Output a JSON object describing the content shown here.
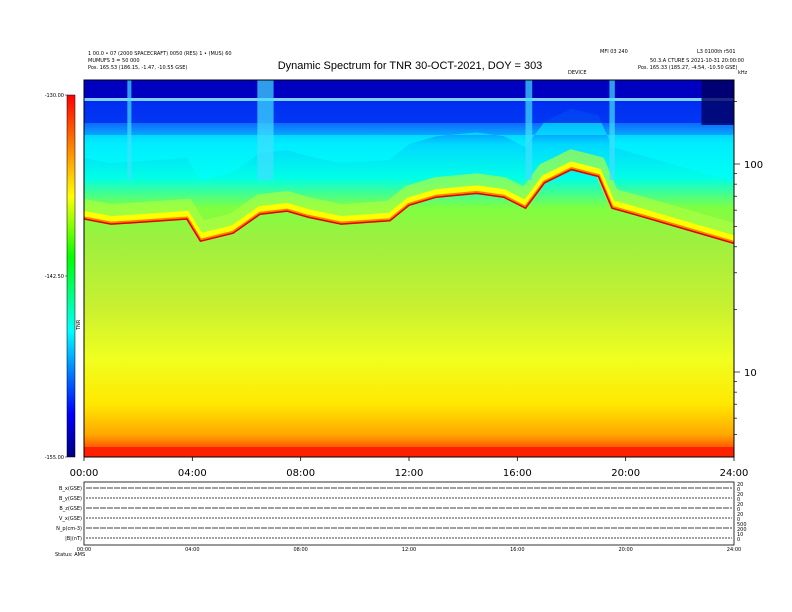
{
  "header": {
    "title": "Dynamic Spectrum for TNR 30-OCT-2021, DOY = 303",
    "left_line1": "1 00.0 • 07 (2000 SPACECRAFT) 0050 (RES) 1 • (MUS) 60",
    "left_line2": "MUMUFS 3 = 50 000",
    "left_line3": "Pos. 165.53 (186.15, -1.47, -10.55 GSE)",
    "right_line1": "MFI 03 240",
    "right_line2": "L3 0100th r501",
    "right_line3": "50.3.A CTURE S 2021-10-31 20:00:00",
    "right_line4": "Pos. 165.33 (185.27, -4.54, -10.50 GSE)",
    "marker_label": "DEVICE",
    "right_corner": "kHz"
  },
  "chart_data": {
    "type": "heatmap",
    "title": "Dynamic Spectrum for TNR 30-OCT-2021, DOY = 303",
    "x_ticks": [
      "00:00",
      "04:00",
      "08:00",
      "12:00",
      "16:00",
      "20:00",
      "24:00"
    ],
    "x_range_hours": [
      0,
      24
    ],
    "y_scale": "log",
    "y_ticks_khz": [
      10,
      100
    ],
    "colorbar": {
      "ticks": [
        "-130.00",
        "-142.50",
        "-155.00"
      ],
      "range": [
        -155,
        -130
      ],
      "label": "TNR"
    },
    "colors": [
      "#000088",
      "#0000ff",
      "#00ffff",
      "#00ff00",
      "#ffff00",
      "#ff7f00",
      "#ff0000"
    ],
    "plasma_line_band": [
      {
        "t": 0,
        "f": 55
      },
      {
        "t": 1,
        "f": 52
      },
      {
        "t": 2,
        "f": 53
      },
      {
        "t": 3.8,
        "f": 55
      },
      {
        "t": 4.3,
        "f": 43
      },
      {
        "t": 5.5,
        "f": 47
      },
      {
        "t": 6.5,
        "f": 58
      },
      {
        "t": 7.5,
        "f": 60
      },
      {
        "t": 8.3,
        "f": 56
      },
      {
        "t": 9.5,
        "f": 52
      },
      {
        "t": 11.3,
        "f": 54
      },
      {
        "t": 12,
        "f": 64
      },
      {
        "t": 13,
        "f": 70
      },
      {
        "t": 14.5,
        "f": 73
      },
      {
        "t": 15.5,
        "f": 70
      },
      {
        "t": 16.3,
        "f": 62
      },
      {
        "t": 17,
        "f": 82
      },
      {
        "t": 18,
        "f": 95
      },
      {
        "t": 19,
        "f": 88
      },
      {
        "t": 19.5,
        "f": 62
      },
      {
        "t": 20.5,
        "f": 57
      },
      {
        "t": 22,
        "f": 50
      },
      {
        "t": 24,
        "f": 42
      }
    ]
  },
  "lower_panel": {
    "rows": [
      "B_x(GSE)",
      "B_y(GSE)",
      "B_z(GSE)",
      "V_x(GSE)",
      "N_p(cm-3)",
      "|B|(nT)"
    ],
    "right_values": [
      "20",
      "0",
      "20",
      "0",
      "20",
      "0",
      "20",
      "0",
      "500",
      "200",
      "10",
      "0"
    ],
    "x_ticks": [
      "00:00",
      "04:00",
      "08:00",
      "12:00",
      "16:00",
      "20:00",
      "24:00"
    ],
    "footer": "Status: AMS"
  }
}
